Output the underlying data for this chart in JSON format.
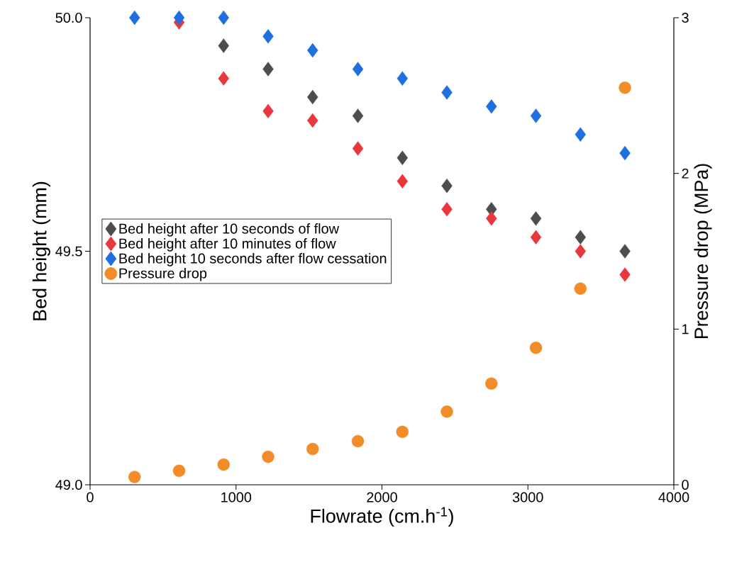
{
  "chart_data": {
    "type": "scatter",
    "xlabel": "Flowrate (cm.h$^{-1}$)",
    "ylabel": "Bed height (mm)",
    "y2label": "Pressure drop (MPa)",
    "x": [
      305,
      610,
      915,
      1220,
      1525,
      1835,
      2140,
      2445,
      2750,
      3055,
      3360,
      3665
    ],
    "xlim": [
      0,
      4000
    ],
    "xticks": [
      0,
      1000,
      2000,
      3000,
      4000
    ],
    "ylim": [
      49,
      50
    ],
    "yticks": [
      {
        "value": 49,
        "label": "49.0"
      },
      {
        "value": 49.5,
        "label": "49.5"
      },
      {
        "value": 50,
        "label": "50.0"
      }
    ],
    "y2lim": [
      0,
      3
    ],
    "y2ticks": [
      0,
      1,
      2,
      3
    ],
    "legend": "left",
    "series": [
      {
        "name": "Bed height after 10 seconds of flow",
        "color": "#4d4d4d",
        "marker": "diamond",
        "values": [
          null,
          null,
          49.94,
          49.89,
          49.83,
          49.79,
          49.7,
          49.64,
          49.59,
          49.57,
          49.53,
          49.5
        ]
      },
      {
        "name": "Bed height after 10 minutes of flow",
        "color": "#e8383d",
        "marker": "diamond",
        "values": [
          null,
          49.99,
          49.87,
          49.8,
          49.78,
          49.72,
          49.65,
          49.59,
          49.57,
          49.53,
          49.5,
          49.45
        ]
      },
      {
        "name": "Bed height 10 seconds after flow cessation",
        "color": "#1f6fdf",
        "marker": "diamond",
        "values": [
          50.0,
          50.0,
          50.0,
          49.96,
          49.93,
          49.89,
          49.87,
          49.84,
          49.81,
          49.79,
          49.75,
          49.71
        ]
      },
      {
        "name": "Pressure drop",
        "color": "#f28c28",
        "marker": "circle",
        "axis": "y2",
        "values": [
          0.05,
          0.09,
          0.13,
          0.18,
          0.23,
          0.28,
          0.34,
          0.47,
          0.65,
          0.88,
          1.26,
          2.55
        ]
      }
    ]
  }
}
